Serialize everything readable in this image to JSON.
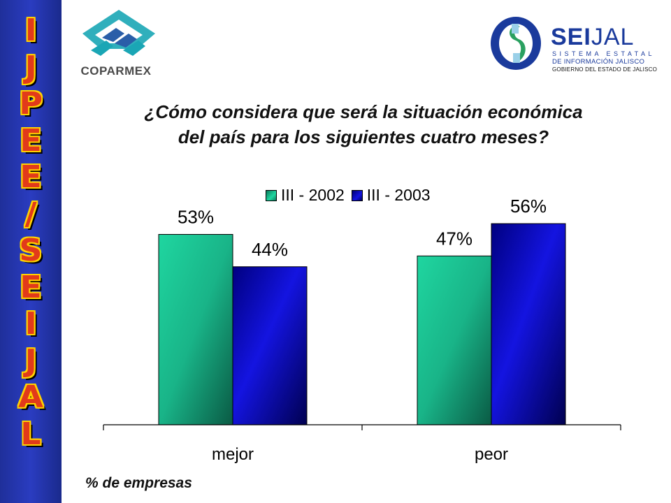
{
  "sidebar": {
    "letters": [
      "I",
      "J",
      "P",
      "E",
      "E",
      "/",
      "S",
      "E",
      "I",
      "J",
      "A",
      "L"
    ]
  },
  "logos": {
    "coparmex": "COPARMEX",
    "seijal": {
      "brand_bold": "SEI",
      "brand_light": "JAL",
      "line1": "SISTEMA ESTATAL",
      "line2": "DE INFORMACIÓN JALISCO",
      "line3": "GOBIERNO DEL ESTADO DE JALISCO"
    }
  },
  "colors": {
    "sidebar": "#2a3cc0",
    "series_2002": "#1fd6a0",
    "series_2003": "#1414e0"
  },
  "chart_data": {
    "type": "bar",
    "title_lines": [
      "¿Cómo considera que será la situación económica",
      "del país para los siguientes cuatro meses?"
    ],
    "categories": [
      "mejor",
      "peor"
    ],
    "series": [
      {
        "name": "III - 2002",
        "values": [
          53,
          47
        ],
        "labels": [
          "53%",
          "47%"
        ]
      },
      {
        "name": "III - 2003",
        "values": [
          44,
          56
        ],
        "labels": [
          "44%",
          "56%"
        ]
      }
    ],
    "ylim": [
      0,
      60
    ],
    "grid": false,
    "legend": "top-center",
    "footnote": "% de empresas"
  }
}
